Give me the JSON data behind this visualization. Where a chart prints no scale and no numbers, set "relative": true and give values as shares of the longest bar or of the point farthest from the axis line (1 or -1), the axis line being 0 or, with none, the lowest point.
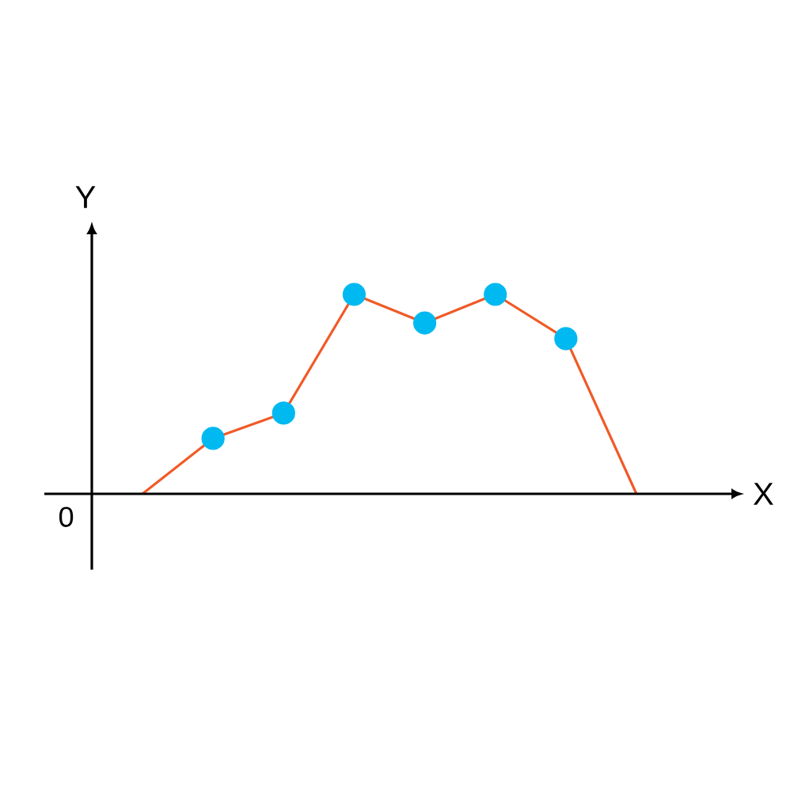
{
  "chart_data": {
    "type": "line",
    "relative": true,
    "xlabel": "X",
    "ylabel": "Y",
    "annotations": [
      "0"
    ],
    "marker": "circle",
    "categories": [
      null,
      null,
      null,
      null,
      null,
      null,
      null,
      null
    ],
    "series": [
      {
        "color": "#f05a28",
        "values": [
          0,
          0.278,
          0.405,
          1,
          0.857,
          1,
          0.778,
          0
        ]
      }
    ]
  }
}
